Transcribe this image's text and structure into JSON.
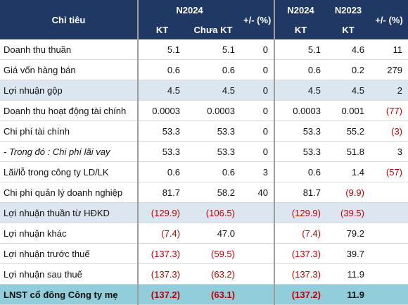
{
  "headers": {
    "indicator": "Chỉ tiêu",
    "n2024_a": "N2024",
    "n2024_b": "N2024",
    "n2023": "N2023",
    "chg1": "+/- (%)",
    "chg2": "+/- (%)",
    "kt1": "KT",
    "chua_kt": "Chưa KT",
    "kt2": "KT",
    "kt3": "KT"
  },
  "rows": [
    {
      "label": "Doanh thu thuần",
      "kt": "5.1",
      "chua": "5.1",
      "chg1": "0",
      "a": "5.1",
      "b": "4.6",
      "chg2": "11"
    },
    {
      "label": "Giá vốn hàng bán",
      "kt": "0.6",
      "chua": "0.6",
      "chg1": "0",
      "a": "0.6",
      "b": "0.2",
      "chg2": "279"
    },
    {
      "label": "Lợi nhuận gộp",
      "kt": "4.5",
      "chua": "4.5",
      "chg1": "0",
      "a": "4.5",
      "b": "4.5",
      "chg2": "2"
    },
    {
      "label": "Doanh thu hoạt động tài chính",
      "kt": "0.0003",
      "chua": "0.0003",
      "chg1": "0",
      "a": "0.0003",
      "b": "0.001",
      "chg2": "(77)"
    },
    {
      "label": "Chi phí tài chính",
      "kt": "53.3",
      "chua": "53.3",
      "chg1": "0",
      "a": "53.3",
      "b": "55.2",
      "chg2": "(3)"
    },
    {
      "label": "- Trong đó : Chi phí lãi vay",
      "kt": "53.3",
      "chua": "53.3",
      "chg1": "0",
      "a": "53.3",
      "b": "51.8",
      "chg2": "3"
    },
    {
      "label": "Lãi/lỗ trong công ty LD/LK",
      "kt": "0.6",
      "chua": "0.6",
      "chg1": "3",
      "a": "0.6",
      "b": "1.4",
      "chg2": "(57)"
    },
    {
      "label": "Chi phí quản lý doanh nghiệp",
      "kt": "81.7",
      "chua": "58.2",
      "chg1": "40",
      "a": "81.7",
      "b": "(9.9)",
      "chg2": ""
    },
    {
      "label": "Lợi nhuận thuần từ HĐKD",
      "kt": "(129.9)",
      "chua": "(106.5)",
      "chg1": "",
      "a": "(129.9)",
      "b": "(39.5)",
      "chg2": ""
    },
    {
      "label": "Lợi nhuận khác",
      "kt": "(7.4)",
      "chua": "47.0",
      "chg1": "",
      "a": "(7.4)",
      "b": "79.2",
      "chg2": ""
    },
    {
      "label": "Lợi nhuận trước thuế",
      "kt": "(137.3)",
      "chua": "(59.5)",
      "chg1": "",
      "a": "(137.3)",
      "b": "39.7",
      "chg2": ""
    },
    {
      "label": "Lợi nhuận sau thuế",
      "kt": "(137.3)",
      "chua": "(63.2)",
      "chg1": "",
      "a": "(137.3)",
      "b": "11.9",
      "chg2": ""
    },
    {
      "label": "LNST cổ đông Công ty mẹ",
      "kt": "(137.2)",
      "chua": "(63.1)",
      "chg1": "",
      "a": "(137.2)",
      "b": "11.9",
      "chg2": ""
    }
  ],
  "colors": {
    "header_bg": "#1f3864",
    "highlight_bg": "#dce6f1",
    "total_bg": "#92cddc",
    "negative_text": "#c00000"
  }
}
